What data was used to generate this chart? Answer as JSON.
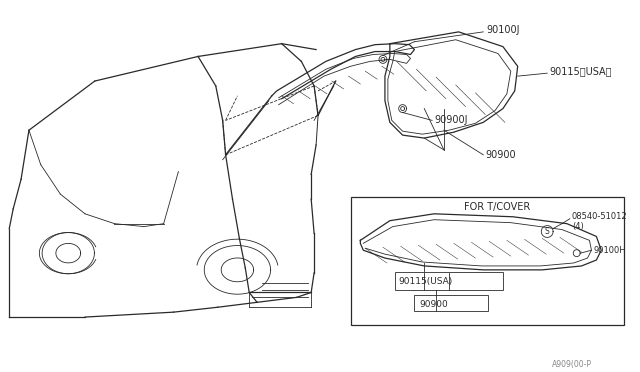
{
  "bg_color": "#ffffff",
  "line_color": "#2a2a2a",
  "fig_width": 6.4,
  "fig_height": 3.72,
  "dpi": 100,
  "watermark": "A909(00-P",
  "label_90100J": "90100J",
  "label_90115_USA": "90115（USA）",
  "label_90900J": "90900J",
  "label_90900": "90900",
  "label_for_tcover": "FOR T/COVER",
  "label_08540": "08540-51012",
  "label_4": "(4)",
  "label_90100H": "90100H",
  "label_90115_USA2": "90115(USA)",
  "label_90900b": "90900"
}
